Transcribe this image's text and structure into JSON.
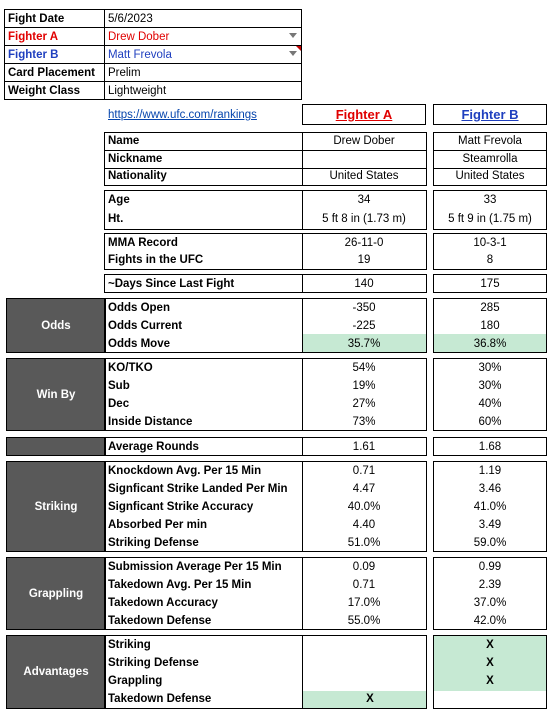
{
  "info": {
    "fight_date_label": "Fight Date",
    "fight_date": "5/6/2023",
    "fighter_a_label": "Fighter A",
    "fighter_a": "Drew Dober",
    "fighter_b_label": "Fighter B",
    "fighter_b": "Matt Frevola",
    "card_label": "Card Placement",
    "card": "Prelim",
    "weight_label": "Weight Class",
    "weight": "Lightweight"
  },
  "link": "https://www.ufc.com/rankings",
  "headers": {
    "a": "Fighter A",
    "b": "Fighter B"
  },
  "profile": {
    "name_label": "Name",
    "name_a": "Drew Dober",
    "name_b": "Matt Frevola",
    "nick_label": "Nickname",
    "nick_a": "",
    "nick_b": "Steamrolla",
    "nat_label": "Nationality",
    "nat_a": "United States",
    "nat_b": "United States"
  },
  "physical": {
    "age_label": "Age",
    "age_a": "34",
    "age_b": "33",
    "ht_label": "Ht.",
    "ht_a": "5 ft 8 in (1.73 m)",
    "ht_b": "5 ft 9 in (1.75 m)"
  },
  "record": {
    "mma_label": "MMA Record",
    "mma_a": "26-11-0",
    "mma_b": "10-3-1",
    "ufc_label": "Fights in the UFC",
    "ufc_a": "19",
    "ufc_b": "8"
  },
  "days": {
    "label": "~Days Since Last Fight",
    "a": "140",
    "b": "175"
  },
  "odds": {
    "section": "Odds",
    "open_label": "Odds Open",
    "open_a": "-350",
    "open_b": "285",
    "current_label": "Odds Current",
    "current_a": "-225",
    "current_b": "180",
    "move_label": "Odds Move",
    "move_a": "35.7%",
    "move_b": "36.8%"
  },
  "winby": {
    "section": "Win By",
    "ko_label": "KO/TKO",
    "ko_a": "54%",
    "ko_b": "30%",
    "sub_label": "Sub",
    "sub_a": "19%",
    "sub_b": "30%",
    "dec_label": "Dec",
    "dec_a": "27%",
    "dec_b": "40%",
    "inside_label": "Inside Distance",
    "inside_a": "73%",
    "inside_b": "60%"
  },
  "rounds": {
    "label": "Average Rounds",
    "a": "1.61",
    "b": "1.68"
  },
  "striking": {
    "section": "Striking",
    "kd_label": "Knockdown Avg. Per 15 Min",
    "kd_a": "0.71",
    "kd_b": "1.19",
    "slpm_label": "Signficant Strike Landed Per Min",
    "slpm_a": "4.47",
    "slpm_b": "3.46",
    "acc_label": "Signficant Strike Accuracy",
    "acc_a": "40.0%",
    "acc_b": "41.0%",
    "abs_label": "Absorbed Per min",
    "abs_a": "4.40",
    "abs_b": "3.49",
    "def_label": "Striking Defense",
    "def_a": "51.0%",
    "def_b": "59.0%"
  },
  "grappling": {
    "section": "Grappling",
    "sub_label": "Submission Average  Per 15 Min",
    "sub_a": "0.09",
    "sub_b": "0.99",
    "td_label": "Takedown Avg. Per 15 Min",
    "td_a": "0.71",
    "td_b": "2.39",
    "tdacc_label": "Takedown Accuracy",
    "tdacc_a": "17.0%",
    "tdacc_b": "37.0%",
    "tddef_label": "Takedown Defense",
    "tddef_a": "55.0%",
    "tddef_b": "42.0%"
  },
  "advantages": {
    "section": "Advantages",
    "str_label": "Striking",
    "str_a": "",
    "str_b": "X",
    "strdef_label": "Striking Defense",
    "strdef_a": "",
    "strdef_b": "X",
    "grap_label": "Grappling",
    "grap_a": "",
    "grap_b": "X",
    "tddef_label": "Takedown Defense",
    "tddef_a": "X",
    "tddef_b": ""
  },
  "colors": {
    "highlight": "#c6e9d3",
    "section_bg": "#595959",
    "fighter_a": "#e00000",
    "fighter_b": "#1f3fbf"
  }
}
